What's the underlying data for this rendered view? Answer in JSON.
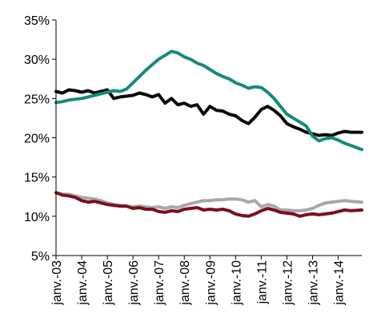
{
  "chart_data": {
    "type": "line",
    "title": "",
    "xlabel": "",
    "ylabel": "",
    "y_unit": "%",
    "ylim": [
      5,
      35
    ],
    "yticks": [
      5,
      10,
      15,
      20,
      25,
      30,
      35
    ],
    "ytick_labels": [
      "5%",
      "10%",
      "15%",
      "20%",
      "25%",
      "30%",
      "35%"
    ],
    "xlim": [
      2003.0,
      2014.92
    ],
    "xticks": [
      2003,
      2004,
      2005,
      2006,
      2007,
      2008,
      2009,
      2010,
      2011,
      2012,
      2013,
      2014
    ],
    "xtick_labels": [
      "janv.-03",
      "janv.-04",
      "janv.-05",
      "janv.-06",
      "janv.-07",
      "janv.-08",
      "janv.-09",
      "janv.-10",
      "janv.-11",
      "janv.-12",
      "janv.-13",
      "janv.-14"
    ],
    "grid": false,
    "legend": "none",
    "series": [
      {
        "color": "#0a0a0a",
        "x": [
          2003.0,
          2003.25,
          2003.5,
          2003.75,
          2004.0,
          2004.25,
          2004.5,
          2004.75,
          2005.0,
          2005.25,
          2005.5,
          2005.75,
          2006.0,
          2006.25,
          2006.5,
          2006.75,
          2007.0,
          2007.25,
          2007.5,
          2007.75,
          2008.0,
          2008.25,
          2008.5,
          2008.75,
          2009.0,
          2009.25,
          2009.5,
          2009.75,
          2010.0,
          2010.25,
          2010.5,
          2010.75,
          2011.0,
          2011.25,
          2011.5,
          2011.75,
          2012.0,
          2012.25,
          2012.5,
          2012.75,
          2013.0,
          2013.25,
          2013.5,
          2013.75,
          2014.0,
          2014.25,
          2014.5,
          2014.92
        ],
        "values": [
          25.9,
          25.7,
          26.1,
          26.0,
          25.8,
          26.0,
          25.7,
          25.9,
          26.1,
          25.0,
          25.2,
          25.3,
          25.4,
          25.7,
          25.5,
          25.2,
          25.5,
          24.4,
          25.0,
          24.2,
          24.4,
          24.0,
          24.2,
          23.0,
          24.0,
          23.5,
          23.4,
          23.0,
          22.8,
          22.2,
          21.8,
          22.6,
          23.6,
          24.0,
          23.5,
          22.8,
          21.8,
          21.4,
          21.1,
          20.7,
          20.5,
          20.3,
          20.4,
          20.3,
          20.6,
          20.8,
          20.7,
          20.7
        ]
      },
      {
        "color": "#168a7a",
        "x": [
          2003.0,
          2003.25,
          2003.5,
          2003.75,
          2004.0,
          2004.25,
          2004.5,
          2004.75,
          2005.0,
          2005.25,
          2005.5,
          2005.75,
          2006.0,
          2006.25,
          2006.5,
          2006.75,
          2007.0,
          2007.25,
          2007.5,
          2007.75,
          2008.0,
          2008.25,
          2008.5,
          2008.75,
          2009.0,
          2009.25,
          2009.5,
          2009.75,
          2010.0,
          2010.25,
          2010.5,
          2010.75,
          2011.0,
          2011.25,
          2011.5,
          2011.75,
          2012.0,
          2012.25,
          2012.5,
          2012.75,
          2013.0,
          2013.25,
          2013.5,
          2013.75,
          2014.0,
          2014.25,
          2014.5,
          2014.92
        ],
        "values": [
          24.5,
          24.6,
          24.8,
          24.9,
          25.0,
          25.2,
          25.4,
          25.6,
          25.8,
          26.0,
          25.9,
          26.2,
          27.0,
          27.8,
          28.6,
          29.3,
          30.0,
          30.5,
          31.0,
          30.8,
          30.3,
          30.0,
          29.5,
          29.2,
          28.7,
          28.2,
          27.8,
          27.5,
          27.0,
          26.7,
          26.3,
          26.5,
          26.4,
          25.8,
          25.0,
          24.0,
          23.0,
          22.5,
          22.0,
          21.5,
          20.2,
          19.6,
          19.9,
          20.0,
          19.7,
          19.3,
          19.0,
          18.5
        ]
      },
      {
        "color": "#a8a8a8",
        "x": [
          2003.0,
          2003.25,
          2003.5,
          2003.75,
          2004.0,
          2004.25,
          2004.5,
          2004.75,
          2005.0,
          2005.25,
          2005.5,
          2005.75,
          2006.0,
          2006.25,
          2006.5,
          2006.75,
          2007.0,
          2007.25,
          2007.5,
          2007.75,
          2008.0,
          2008.25,
          2008.5,
          2008.75,
          2009.0,
          2009.25,
          2009.5,
          2009.75,
          2010.0,
          2010.25,
          2010.5,
          2010.75,
          2011.0,
          2011.25,
          2011.5,
          2011.75,
          2012.0,
          2012.25,
          2012.5,
          2012.75,
          2013.0,
          2013.25,
          2013.5,
          2013.75,
          2014.0,
          2014.25,
          2014.5,
          2014.92
        ],
        "values": [
          13.0,
          12.8,
          12.8,
          12.6,
          12.4,
          12.3,
          12.2,
          12.0,
          11.7,
          11.5,
          11.4,
          11.3,
          11.2,
          11.3,
          11.2,
          11.1,
          11.2,
          11.0,
          11.2,
          11.1,
          11.4,
          11.6,
          11.8,
          12.0,
          12.0,
          12.1,
          12.1,
          12.2,
          12.2,
          12.1,
          11.8,
          12.0,
          11.2,
          11.5,
          11.3,
          10.8,
          10.8,
          10.7,
          10.7,
          10.8,
          11.0,
          11.4,
          11.7,
          11.8,
          11.9,
          12.0,
          11.9,
          11.8
        ]
      },
      {
        "color": "#7a0f1e",
        "x": [
          2003.0,
          2003.25,
          2003.5,
          2003.75,
          2004.0,
          2004.25,
          2004.5,
          2004.75,
          2005.0,
          2005.25,
          2005.5,
          2005.75,
          2006.0,
          2006.25,
          2006.5,
          2006.75,
          2007.0,
          2007.25,
          2007.5,
          2007.75,
          2008.0,
          2008.25,
          2008.5,
          2008.75,
          2009.0,
          2009.25,
          2009.5,
          2009.75,
          2010.0,
          2010.25,
          2010.5,
          2010.75,
          2011.0,
          2011.25,
          2011.5,
          2011.75,
          2012.0,
          2012.25,
          2012.5,
          2012.75,
          2013.0,
          2013.25,
          2013.5,
          2013.75,
          2014.0,
          2014.25,
          2014.5,
          2014.92
        ],
        "values": [
          13.0,
          12.7,
          12.6,
          12.4,
          12.0,
          11.8,
          11.9,
          11.7,
          11.5,
          11.4,
          11.3,
          11.3,
          11.0,
          11.1,
          10.9,
          10.9,
          10.6,
          10.5,
          10.7,
          10.6,
          10.9,
          11.0,
          11.1,
          10.8,
          10.9,
          10.8,
          10.9,
          10.7,
          10.3,
          10.1,
          10.0,
          10.3,
          10.7,
          11.0,
          10.8,
          10.5,
          10.4,
          10.3,
          10.0,
          10.2,
          10.3,
          10.2,
          10.3,
          10.4,
          10.6,
          10.8,
          10.7,
          10.8
        ]
      }
    ]
  }
}
